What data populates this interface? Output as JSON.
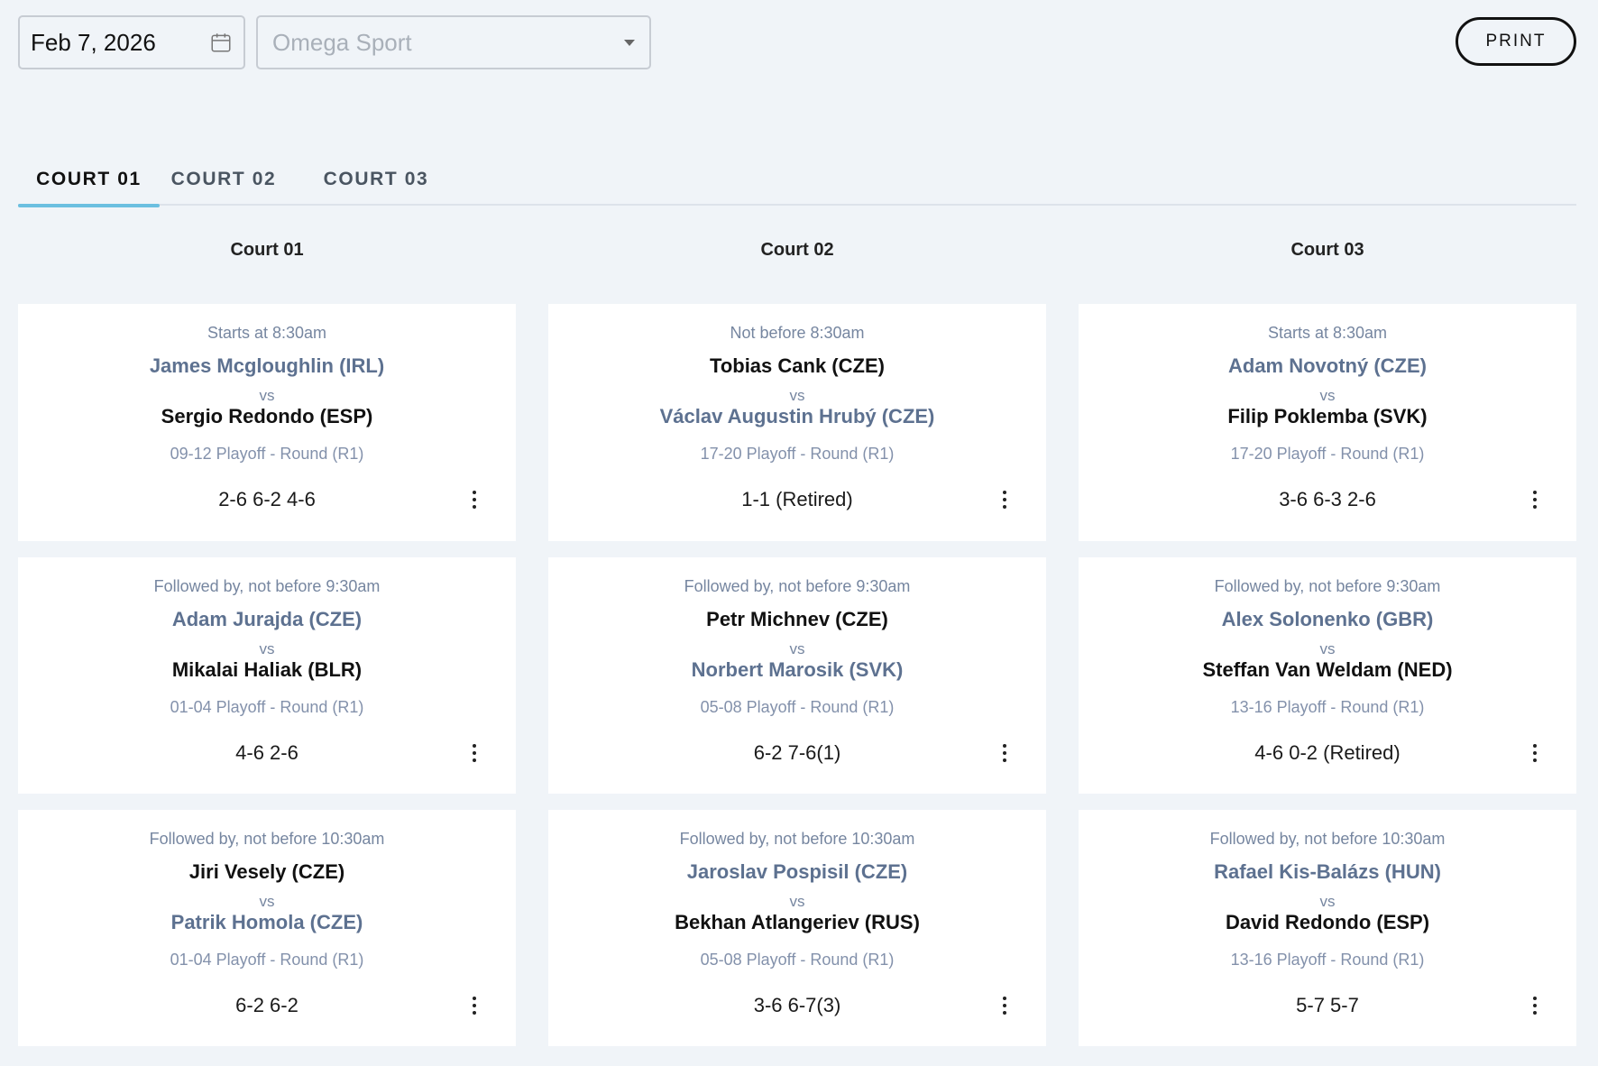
{
  "toolbar": {
    "date_value": "Feb 7, 2026",
    "sport_placeholder": "Omega Sport",
    "print_label": "PRINT"
  },
  "tabs": [
    {
      "label": "COURT 01",
      "active": true
    },
    {
      "label": "COURT 02",
      "active": false
    },
    {
      "label": "COURT 03",
      "active": false
    }
  ],
  "courts": [
    {
      "name": "Court 01",
      "matches": [
        {
          "time": "Starts at 8:30am",
          "player1": "James Mcgloughlin (IRL)",
          "player2": "Sergio Redondo (ESP)",
          "round": "09-12 Playoff - Round (R1)",
          "score": "2-6 6-2 4-6",
          "winner": 2
        },
        {
          "time": "Followed by, not before 9:30am",
          "player1": "Adam Jurajda (CZE)",
          "player2": "Mikalai Haliak (BLR)",
          "round": "01-04 Playoff - Round (R1)",
          "score": "4-6 2-6",
          "winner": 2
        },
        {
          "time": "Followed by, not before 10:30am",
          "player1": "Jiri Vesely (CZE)",
          "player2": "Patrik Homola (CZE)",
          "round": "01-04 Playoff - Round (R1)",
          "score": "6-2 6-2",
          "winner": 1
        }
      ]
    },
    {
      "name": "Court 02",
      "matches": [
        {
          "time": "Not before 8:30am",
          "player1": "Tobias Cank (CZE)",
          "player2": "Václav Augustin Hrubý (CZE)",
          "round": "17-20 Playoff - Round (R1)",
          "score": "1-1 (Retired)",
          "winner": 1
        },
        {
          "time": "Followed by, not before 9:30am",
          "player1": "Petr Michnev (CZE)",
          "player2": "Norbert Marosik (SVK)",
          "round": "05-08 Playoff - Round (R1)",
          "score": "6-2 7-6(1)",
          "winner": 1
        },
        {
          "time": "Followed by, not before 10:30am",
          "player1": "Jaroslav Pospisil (CZE)",
          "player2": "Bekhan Atlangeriev (RUS)",
          "round": "05-08 Playoff - Round (R1)",
          "score": "3-6 6-7(3)",
          "winner": 2
        }
      ]
    },
    {
      "name": "Court 03",
      "matches": [
        {
          "time": "Starts at 8:30am",
          "player1": "Adam Novotný (CZE)",
          "player2": "Filip Poklemba (SVK)",
          "round": "17-20 Playoff - Round (R1)",
          "score": "3-6 6-3 2-6",
          "winner": 2
        },
        {
          "time": "Followed by, not before 9:30am",
          "player1": "Alex Solonenko (GBR)",
          "player2": "Steffan Van Weldam (NED)",
          "round": "13-16 Playoff - Round (R1)",
          "score": "4-6 0-2 (Retired)",
          "winner": 2
        },
        {
          "time": "Followed by, not before 10:30am",
          "player1": "Rafael Kis-Balázs (HUN)",
          "player2": "David Redondo (ESP)",
          "round": "13-16 Playoff - Round (R1)",
          "score": "5-7 5-7",
          "winner": 2
        }
      ]
    }
  ],
  "vs_label": "vs",
  "colors": {
    "accent": "#6bbfe0",
    "background": "#f0f4f8",
    "muted_text": "#7686a0",
    "player_highlight": "#5d7190"
  },
  "icons": {
    "date": "calendar-icon",
    "select": "chevron-down-icon",
    "card_menu": "more-vertical-icon"
  }
}
